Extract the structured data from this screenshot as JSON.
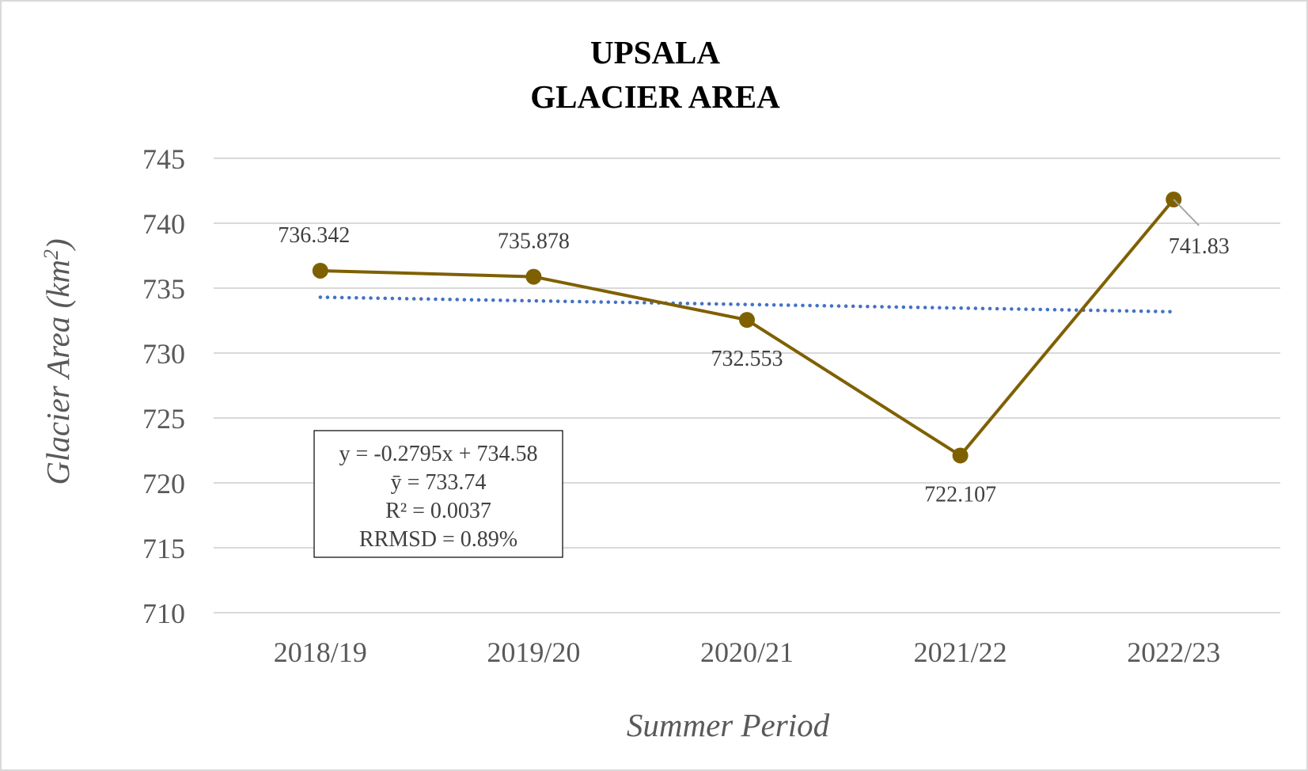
{
  "chart_data": {
    "type": "line",
    "title_line1": "UPSALA",
    "title_line2": "GLACIER AREA",
    "xlabel": "Summer Period",
    "ylabel_main": "Glacier Area (km",
    "ylabel_sup": "2",
    "ylabel_close": ")",
    "categories": [
      "2018/19",
      "2019/20",
      "2020/21",
      "2021/22",
      "2022/23"
    ],
    "series": [
      {
        "values": [
          736.342,
          735.878,
          732.553,
          722.107,
          741.83
        ],
        "labels": [
          "736.342",
          "735.878",
          "732.553",
          "722.107",
          "741.83"
        ],
        "color": "#7f6000"
      }
    ],
    "trendline": {
      "slope": -0.2795,
      "intercept": 734.58,
      "color": "#4472c4",
      "style": "dotted"
    },
    "ylim": [
      710,
      745
    ],
    "yticks": [
      710,
      715,
      720,
      725,
      730,
      735,
      740,
      745
    ],
    "grid": true,
    "stats_box": [
      "y = -0.2795x + 734.58",
      "ȳ = 733.74",
      "R² = 0.0037",
      "RRMSD = 0.89%"
    ],
    "colors": {
      "grid": "#d9d9d9",
      "axis_text": "#595959",
      "title": "#000000"
    }
  }
}
